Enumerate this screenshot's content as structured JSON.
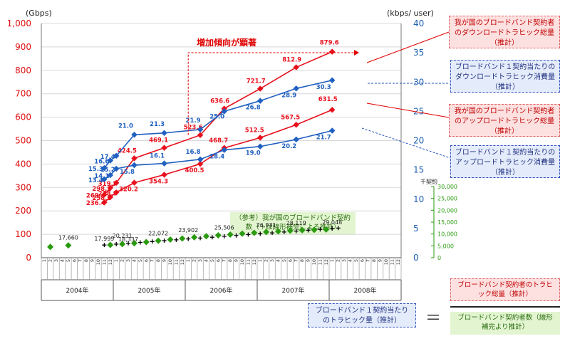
{
  "chart_data": {
    "type": "line",
    "y_unit_left": "(Gbps)",
    "y_unit_right": "(kbps/ user)",
    "y_unit_contracts": "千契約",
    "ylim_left": [
      0,
      1000
    ],
    "ylim_right": [
      0,
      40
    ],
    "ylim_contracts": [
      0,
      30000
    ],
    "left_ticks": [
      "0",
      "100",
      "200",
      "300",
      "400",
      "500",
      "600",
      "700",
      "800",
      "900",
      "1,000"
    ],
    "right_ticks": [
      "0",
      "5",
      "10",
      "15",
      "20",
      "25",
      "30",
      "35",
      "40"
    ],
    "contract_ticks": [
      "0",
      "5,000",
      "10,000",
      "15,000",
      "20,000",
      "25,000",
      "30,000"
    ],
    "x_month_labels": [
      "1",
      "2",
      "3",
      "4",
      "5",
      "6",
      "7",
      "8",
      "9",
      "10",
      "11",
      "12",
      "1",
      "2",
      "3",
      "4",
      "5",
      "6",
      "7",
      "8",
      "9",
      "10",
      "11",
      "12",
      "1",
      "2",
      "3",
      "4",
      "5",
      "6",
      "7",
      "8",
      "9",
      "10",
      "11",
      "12",
      "1",
      "2",
      "3",
      "4",
      "5",
      "6",
      "7",
      "8",
      "9",
      "10",
      "11",
      "12",
      "1",
      "2",
      "3",
      "4",
      "5",
      "6",
      "7",
      "8",
      "9",
      "10",
      "11",
      "12"
    ],
    "x_years": [
      "2004年",
      "2005年",
      "2006年",
      "2007年",
      "2008年"
    ],
    "series": [
      {
        "name": "我が国のブロードバンド契約者のダウンロードトラヒック総量（推計）",
        "axis": "left",
        "color": "#e8101c",
        "points": [
          [
            10,
            269.4
          ],
          [
            11,
            298.1
          ],
          [
            12,
            319.7
          ],
          [
            15,
            424.5
          ],
          [
            20,
            469.1
          ],
          [
            26,
            523.6
          ],
          [
            30,
            636.6
          ],
          [
            36,
            721.7
          ],
          [
            42,
            812.9
          ],
          [
            48,
            879.6
          ]
        ],
        "labels": [
          "269.4",
          "298.1",
          "319.7",
          "424.5",
          "469.1",
          "523.6",
          "636.6",
          "721.7",
          "812.9",
          "879.6"
        ]
      },
      {
        "name": "我が国のブロードバンド契約者のアップロードトラヒック総量（推計）",
        "axis": "left",
        "color": "#e8101c",
        "points": [
          [
            10,
            236.4
          ],
          [
            11,
            258.5
          ],
          [
            12,
            278.8
          ],
          [
            15,
            320.2
          ],
          [
            20,
            354.3
          ],
          [
            26,
            400.5
          ],
          [
            30,
            468.7
          ],
          [
            36,
            512.5
          ],
          [
            42,
            567.5
          ],
          [
            48,
            631.5
          ]
        ],
        "labels": [
          "236.4",
          "258.5",
          "278.8",
          "320.2",
          "354.3",
          "400.5",
          "468.7",
          "512.5",
          "567.5",
          "631.5"
        ]
      },
      {
        "name": "ブロードバンド１契約当たりのダウンロードトラヒック消費量（推計）",
        "axis": "right",
        "color": "#2060c0",
        "points": [
          [
            10,
            15.3
          ],
          [
            11,
            16.6
          ],
          [
            12,
            17.4
          ],
          [
            15,
            21.0
          ],
          [
            20,
            21.3
          ],
          [
            26,
            21.9
          ],
          [
            30,
            25.0
          ],
          [
            36,
            26.8
          ],
          [
            42,
            28.9
          ],
          [
            48,
            30.3
          ]
        ],
        "labels": [
          "15.3",
          "16.6",
          "17.4",
          "21.0",
          "21.3",
          "21.9",
          "25.0",
          "26.8",
          "28.9",
          "30.3"
        ]
      },
      {
        "name": "ブロードバンド１契約当たりのアップロードトラヒック消費量（推計）",
        "axis": "right",
        "color": "#2060c0",
        "points": [
          [
            10,
            13.4
          ],
          [
            11,
            14.1
          ],
          [
            12,
            15.2
          ],
          [
            15,
            15.8
          ],
          [
            20,
            16.1
          ],
          [
            26,
            16.8
          ],
          [
            30,
            18.4
          ],
          [
            36,
            19.0
          ],
          [
            42,
            20.2
          ],
          [
            48,
            21.7
          ]
        ],
        "labels": [
          "13.4",
          "14.1",
          "15.2",
          "15.8",
          "16.1",
          "16.8",
          "18.4",
          "19.0",
          "20.2",
          "21.7"
        ]
      },
      {
        "name": "（参考）我が国のブロードバンド契約数（＋は線形補完による推計）",
        "axis": "contracts",
        "color": "#2a9a10",
        "diamonds": [
          [
            1,
            4550
          ],
          [
            4,
            5200
          ],
          [
            11,
            5400
          ],
          [
            13,
            5750
          ],
          [
            15,
            6100
          ],
          [
            17,
            6600
          ],
          [
            19,
            7150
          ],
          [
            21,
            7650
          ],
          [
            23,
            8100
          ],
          [
            25,
            8600
          ],
          [
            27,
            9050
          ],
          [
            29,
            9450
          ],
          [
            31,
            9750
          ],
          [
            33,
            10150
          ],
          [
            35,
            10500
          ],
          [
            37,
            10850
          ],
          [
            39,
            11100
          ],
          [
            41,
            11400
          ],
          [
            43,
            11600
          ],
          [
            45,
            11750
          ],
          [
            47,
            11900
          ]
        ],
        "labels": [
          [
            "17,660",
            4,
            5800
          ],
          [
            "17,999",
            10,
            5350
          ],
          [
            "18,337",
            14,
            5050
          ],
          [
            "20,231",
            13,
            6650
          ],
          [
            "22,072",
            19,
            7650
          ],
          [
            "23,902",
            24,
            8950
          ],
          [
            "25,506",
            30,
            10100
          ],
          [
            "26,931",
            37,
            11050
          ],
          [
            "28,119",
            42,
            11950
          ],
          [
            "29,048",
            48,
            12300
          ]
        ]
      }
    ],
    "annotations": {
      "increase": "増加傾向が顕著",
      "note_total_down": "我が国のブロードバンド契約者のダウンロードトラヒック総量（推計）",
      "note_per_down": "ブロードバンド１契約当たりのダウンロードトラヒック消費量（推計）",
      "note_total_up": "我が国のブロードバンド契約者のアップロードトラヒック総量（推計）",
      "note_per_up": "ブロードバンド１契約当たりのアップロードトラヒック消費量（推計）",
      "note_contracts": "（参考）我が国のブロードバンド契約数（＋は線形補完による推計）",
      "formula_left": "ブロードバンド１契約当たりのトラヒック量（推計）",
      "formula_equals": "＝",
      "formula_top": "ブロードバンド契約者のトラヒック総量（推計）",
      "formula_bottom": "ブロードバンド契約者数（線形補完より推計）"
    }
  }
}
